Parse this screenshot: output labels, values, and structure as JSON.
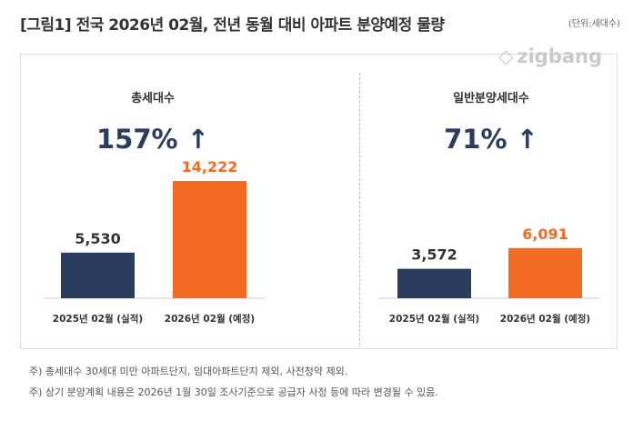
{
  "title": "[그림1] 전국 2026년 02월, 전년 동월 대비 아파트 분양예정 물량",
  "unit": "(단위:세대수)",
  "logo": "zigbang",
  "colors": {
    "prev": "#2b3d5e",
    "plan": "#f26b21"
  },
  "chart_data": [
    {
      "type": "bar",
      "title": "총세대수",
      "change": "157% ↑",
      "categories": [
        "2025년 02월 (실적)",
        "2026년 02월 (예정)"
      ],
      "values": [
        5530,
        14222
      ],
      "labels": [
        "5,530",
        "14,222"
      ]
    },
    {
      "type": "bar",
      "title": "일반분양세대수",
      "change": "71% ↑",
      "categories": [
        "2025년 02월 (실적)",
        "2026년 02월 (예정)"
      ],
      "values": [
        3572,
        6091
      ],
      "labels": [
        "3,572",
        "6,091"
      ]
    }
  ],
  "notes": [
    "주) 총세대수 30세대 미만 아파트단지, 임대아파트단지 제외, 사전청약 제외.",
    "주) 상기 분양계획 내용은 2026년 1월 30일 조사기준으로 공급자 사정 등에 따라 변경될 수 있음."
  ]
}
